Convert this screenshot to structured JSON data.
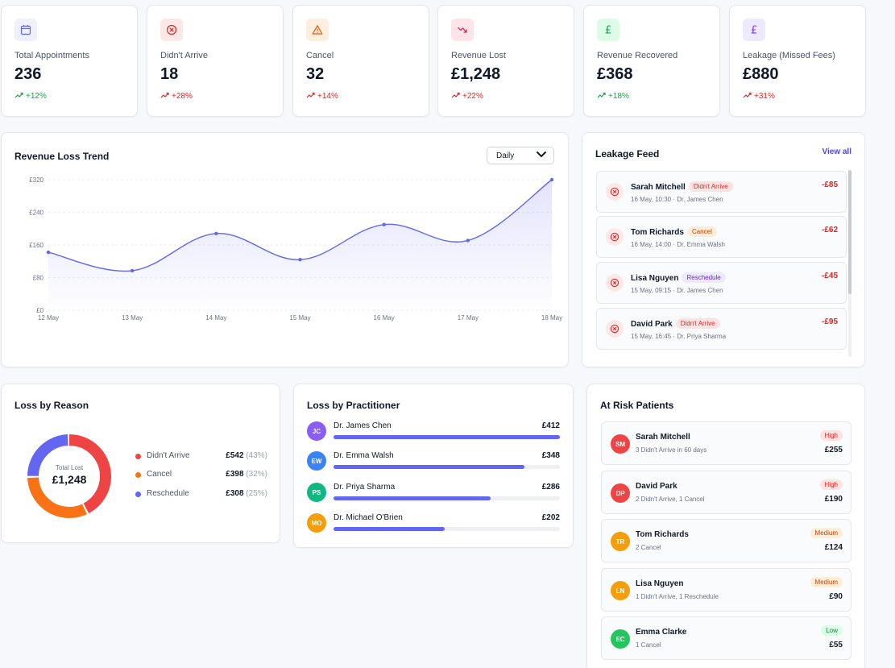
{
  "kpis": [
    {
      "label": "Total Appointments",
      "value": "236",
      "change": "+12%",
      "icon": "calendar-icon",
      "trend": "up-green"
    },
    {
      "label": "Didn't Arrive",
      "value": "18",
      "change": "+28%",
      "icon": "x-circle-icon",
      "trend": "up-red"
    },
    {
      "label": "Cancel",
      "value": "32",
      "change": "+14%",
      "icon": "warning-icon",
      "trend": "up-red"
    },
    {
      "label": "Revenue Lost",
      "value": "£1,248",
      "change": "+22%",
      "icon": "trend-down-icon",
      "trend": "up-red"
    },
    {
      "label": "Revenue Recovered",
      "value": "£368",
      "change": "+18%",
      "icon": "pound-icon",
      "trend": "up-green"
    },
    {
      "label": "Leakage (Missed Fees)",
      "value": "£880",
      "change": "+31%",
      "icon": "pound-icon",
      "trend": "up-red"
    }
  ],
  "trend": {
    "title": "Revenue Loss Trend",
    "period": "Daily"
  },
  "chart_data": {
    "type": "area",
    "x": [
      "12 May",
      "13 May",
      "14 May",
      "15 May",
      "16 May",
      "17 May",
      "18 May"
    ],
    "series": [
      {
        "values": [
          142,
          97,
          188,
          124,
          210,
          171,
          320
        ]
      }
    ],
    "ylim": [
      0,
      320
    ],
    "yticks": [
      0,
      80,
      160,
      240,
      320
    ],
    "ytick_labels": [
      "£0",
      "£80",
      "£160",
      "£240",
      "£320"
    ],
    "grid": true,
    "line_color": "#6366f1"
  },
  "feed": {
    "title": "Leakage Feed",
    "view_all": "View all",
    "items": [
      {
        "name": "Sarah Mitchell",
        "badge": "Didn't Arrive",
        "badge_class": "b-red",
        "sub": "16 May, 10:30 · Dr. James Chen",
        "amount": "-£85"
      },
      {
        "name": "Tom Richards",
        "badge": "Cancel",
        "badge_class": "b-orange",
        "sub": "16 May, 14:00 · Dr. Emma Walsh",
        "amount": "-£62"
      },
      {
        "name": "Lisa Nguyen",
        "badge": "Reschedule",
        "badge_class": "b-purple",
        "sub": "15 May, 09:15 · Dr. James Chen",
        "amount": "-£45"
      },
      {
        "name": "David Park",
        "badge": "Didn't Arrive",
        "badge_class": "b-red",
        "sub": "15 May, 16:45 · Dr. Priya Sharma",
        "amount": "-£95"
      }
    ]
  },
  "reason": {
    "title": "Loss by Reason",
    "center_label": "Total Lost",
    "center_value": "£1,248",
    "items": [
      {
        "name": "Didn't Arrive",
        "value": "£542",
        "pct": "(43%)",
        "share": 0.43,
        "color": "#ef4444"
      },
      {
        "name": "Cancel",
        "value": "£398",
        "pct": "(32%)",
        "share": 0.32,
        "color": "#f97316"
      },
      {
        "name": "Reschedule",
        "value": "£308",
        "pct": "(25%)",
        "share": 0.25,
        "color": "#6366f1"
      }
    ]
  },
  "practitioner": {
    "title": "Loss by Practitioner",
    "items": [
      {
        "initials": "JC",
        "name": "Dr. James Chen",
        "value": "£412",
        "amount": 412,
        "color": "#8b5cf6"
      },
      {
        "initials": "EW",
        "name": "Dr. Emma Walsh",
        "value": "£348",
        "amount": 348,
        "color": "#3b82f6"
      },
      {
        "initials": "PS",
        "name": "Dr. Priya Sharma",
        "value": "£286",
        "amount": 286,
        "color": "#10b981"
      },
      {
        "initials": "MO",
        "name": "Dr. Michael O'Brien",
        "value": "£202",
        "amount": 202,
        "color": "#f59e0b"
      }
    ]
  },
  "risk": {
    "title": "At Risk Patients",
    "items": [
      {
        "initials": "SM",
        "name": "Sarah Mitchell",
        "sub": "3 Didn't Arrive in 60 days",
        "level": "High",
        "level_class": "b-red",
        "amount": "£255",
        "color": "#ef4444"
      },
      {
        "initials": "DP",
        "name": "David Park",
        "sub": "2 Didn't Arrive, 1 Cancel",
        "level": "High",
        "level_class": "b-red",
        "amount": "£190",
        "color": "#ef4444"
      },
      {
        "initials": "TR",
        "name": "Tom Richards",
        "sub": "2 Cancel",
        "level": "Medium",
        "level_class": "b-orange",
        "amount": "£124",
        "color": "#f59e0b"
      },
      {
        "initials": "LN",
        "name": "Lisa Nguyen",
        "sub": "1 Didn't Arrive, 1 Reschedule",
        "level": "Medium",
        "level_class": "b-orange",
        "amount": "£90",
        "color": "#f59e0b"
      },
      {
        "initials": "EC",
        "name": "Emma Clarke",
        "sub": "1 Cancel",
        "level": "Low",
        "level_class": "b-green",
        "amount": "£55",
        "color": "#22c55e"
      }
    ]
  }
}
